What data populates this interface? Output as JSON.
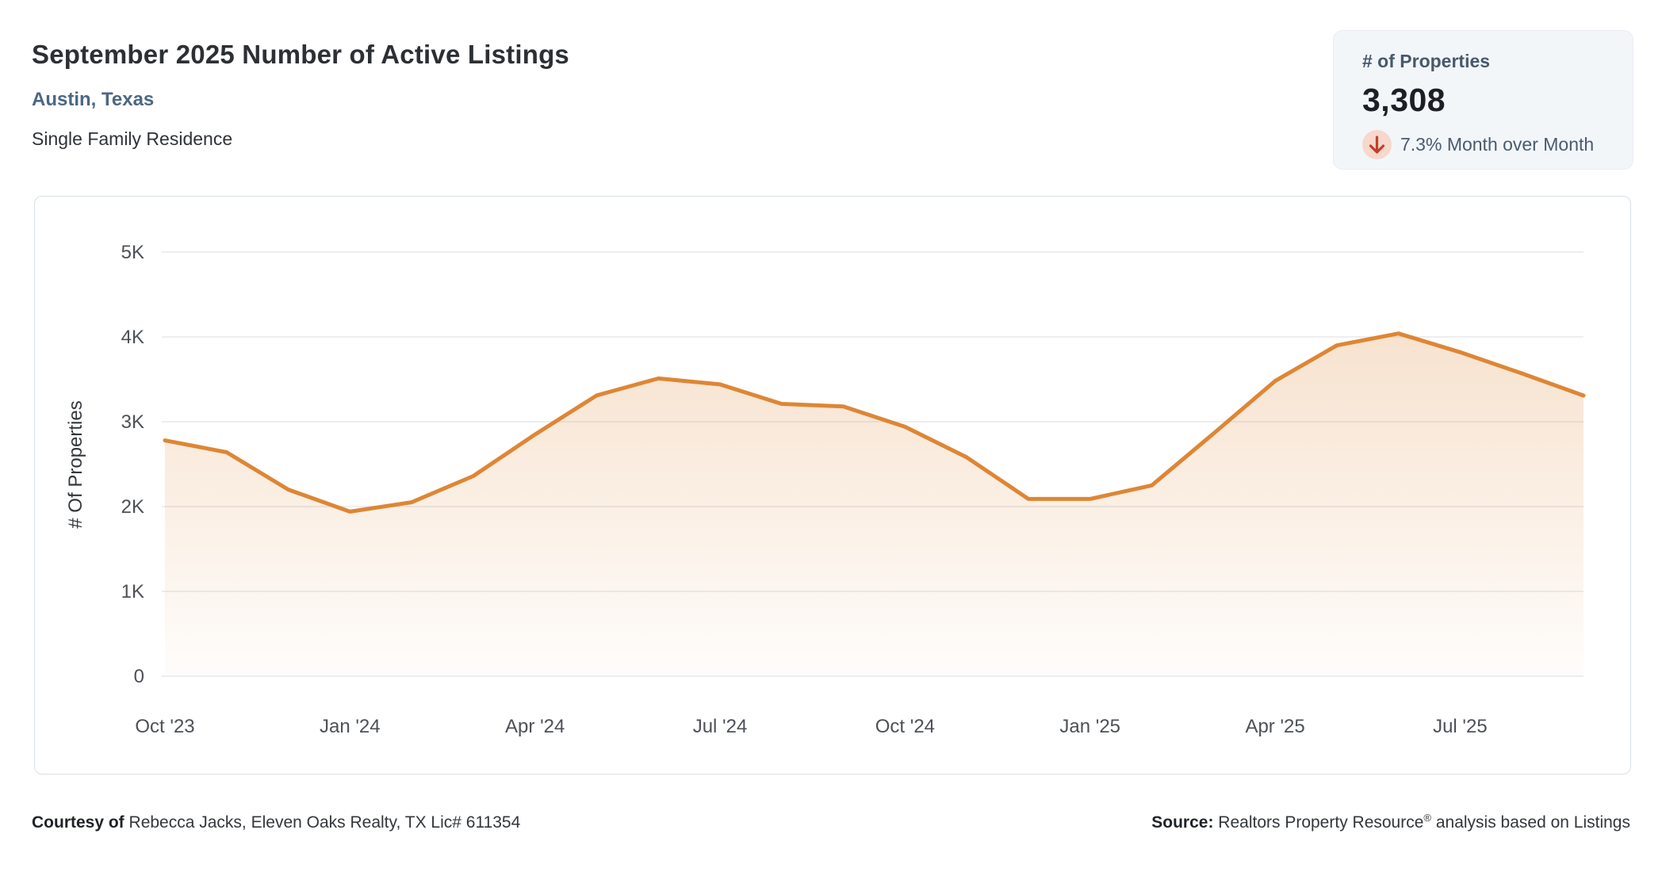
{
  "header": {
    "title": "September 2025 Number of Active Listings",
    "location": "Austin, Texas",
    "property_type": "Single Family Residence"
  },
  "stat_card": {
    "label": "# of Properties",
    "value": "3,308",
    "change_direction": "down",
    "change_text": "7.3% Month over Month"
  },
  "chart_data": {
    "type": "area",
    "title": "September 2025 Number of Active Listings",
    "xlabel": "",
    "ylabel": "# Of Properties",
    "x": [
      "Oct '23",
      "Nov '23",
      "Dec '23",
      "Jan '24",
      "Feb '24",
      "Mar '24",
      "Apr '24",
      "May '24",
      "Jun '24",
      "Jul '24",
      "Aug '24",
      "Sep '24",
      "Oct '24",
      "Nov '24",
      "Dec '24",
      "Jan '25",
      "Feb '25",
      "Mar '25",
      "Apr '25",
      "May '25",
      "Jun '25",
      "Jul '25",
      "Aug '25",
      "Sep '25"
    ],
    "values": [
      2780,
      2640,
      2200,
      1940,
      2050,
      2360,
      2850,
      3310,
      3510,
      3440,
      3210,
      3180,
      2940,
      2580,
      2090,
      2090,
      2250,
      2860,
      3480,
      3900,
      4040,
      3820,
      3570,
      3308
    ],
    "ylim": [
      0,
      5000
    ],
    "y_tick_values": [
      0,
      1000,
      2000,
      3000,
      4000,
      5000
    ],
    "y_tick_labels": [
      "0",
      "1K",
      "2K",
      "3K",
      "4K",
      "5K"
    ],
    "x_tick_every": 3,
    "x_tick_labels": [
      "Oct '23",
      "Jan '24",
      "Apr '24",
      "Jul '24",
      "Oct '24",
      "Jan '25",
      "Apr '25",
      "Jul '25"
    ],
    "grid": true,
    "legend": "none",
    "line_color": "#de8634",
    "fill_color_top": "rgba(222,134,52,0.24)",
    "fill_color_bottom": "rgba(222,134,52,0.02)",
    "grid_color": "#e7e8ea",
    "tick_color": "#4d5156"
  },
  "footer": {
    "courtesy_bold": "Courtesy of",
    "courtesy_text": "Rebecca Jacks, Eleven Oaks Realty, TX Lic# 611354",
    "source_bold": "Source:",
    "source_name": "Realtors Property Resource",
    "source_reg": "®",
    "source_rest": " analysis based on Listings"
  },
  "colors": {
    "accent_orange": "#de8634",
    "accent_slate_blue": "#4c6781",
    "stat_card_bg": "#f3f6f9",
    "down_arrow_red": "#c2402a",
    "down_arrow_bg": "#f6d8cc",
    "card_border": "#d9e0e9"
  }
}
